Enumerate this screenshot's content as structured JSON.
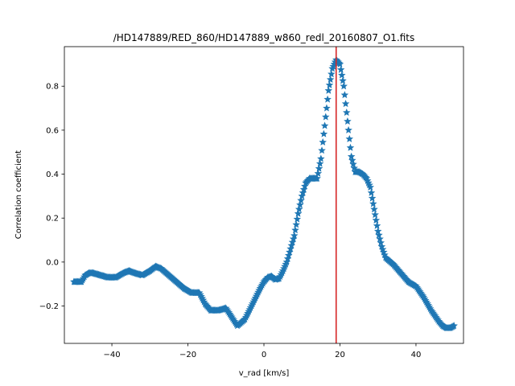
{
  "chart_data": {
    "type": "scatter",
    "title": "/HD147889/RED_860/HD147889_w860_redl_20160807_O1.fits",
    "xlabel": "v_rad [km/s]",
    "ylabel": "Correlation coefficient",
    "xlim": [
      -52.5,
      52.5
    ],
    "ylim": [
      -0.37,
      0.98
    ],
    "xticks": [
      -40,
      -20,
      0,
      20,
      40
    ],
    "yticks": [
      -0.2,
      0.0,
      0.2,
      0.4,
      0.6,
      0.8
    ],
    "xtick_labels": [
      "−40",
      "−20",
      "0",
      "20",
      "40"
    ],
    "ytick_labels": [
      "−0.2",
      "0.0",
      "0.2",
      "0.4",
      "0.6",
      "0.8"
    ],
    "marker": "star",
    "series_color": "#1f77b4",
    "vline": {
      "x": 19.0,
      "color": "#d62728"
    },
    "grid": false,
    "series": [
      {
        "x": [
          -50,
          -48,
          -47,
          -46,
          -45,
          -43,
          -41,
          -39,
          -37,
          -35.5,
          -34,
          -32,
          -30,
          -28.5,
          -27,
          -25,
          -23,
          -21,
          -19,
          -17,
          -15.5,
          -14,
          -12,
          -10,
          -8.5,
          -7,
          -5,
          -3,
          -1,
          0,
          1,
          2,
          3,
          4,
          5,
          6,
          7,
          8,
          9,
          10,
          11,
          12,
          13,
          14,
          15,
          16,
          17,
          18,
          19,
          20,
          21,
          22,
          23,
          24,
          25,
          26,
          27,
          28,
          29,
          30,
          31,
          32,
          33,
          34,
          35,
          36,
          38,
          40,
          42,
          44,
          46,
          47,
          48,
          49,
          50
        ],
        "y": [
          -0.09,
          -0.09,
          -0.06,
          -0.05,
          -0.05,
          -0.06,
          -0.07,
          -0.07,
          -0.05,
          -0.04,
          -0.05,
          -0.06,
          -0.04,
          -0.02,
          -0.03,
          -0.06,
          -0.09,
          -0.12,
          -0.14,
          -0.14,
          -0.19,
          -0.22,
          -0.22,
          -0.21,
          -0.25,
          -0.29,
          -0.26,
          -0.19,
          -0.12,
          -0.09,
          -0.07,
          -0.065,
          -0.08,
          -0.075,
          -0.04,
          0.0,
          0.06,
          0.12,
          0.22,
          0.3,
          0.36,
          0.38,
          0.38,
          0.38,
          0.47,
          0.62,
          0.78,
          0.88,
          0.92,
          0.9,
          0.8,
          0.64,
          0.48,
          0.41,
          0.41,
          0.4,
          0.38,
          0.34,
          0.24,
          0.14,
          0.07,
          0.02,
          0.005,
          -0.01,
          -0.03,
          -0.05,
          -0.09,
          -0.11,
          -0.16,
          -0.22,
          -0.27,
          -0.29,
          -0.3,
          -0.3,
          -0.29
        ]
      }
    ]
  }
}
